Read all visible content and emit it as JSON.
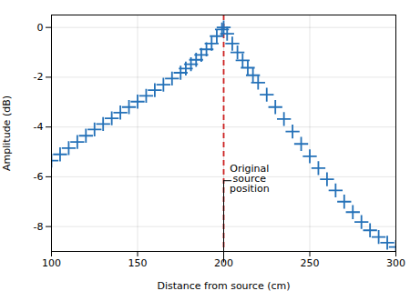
{
  "chart_data": {
    "type": "scatter",
    "xlabel": "Distance from source (cm)",
    "ylabel": "Amplitude (dB)",
    "x": [
      100,
      105,
      110,
      115,
      120,
      125,
      130,
      135,
      140,
      145,
      150,
      155,
      160,
      165,
      170,
      175,
      178,
      181,
      184,
      187,
      190,
      193,
      196,
      199,
      200,
      202,
      205,
      208,
      211,
      214,
      217,
      220,
      225,
      230,
      235,
      240,
      245,
      250,
      255,
      260,
      265,
      270,
      275,
      280,
      285,
      290,
      295,
      300
    ],
    "values": [
      -5.35,
      -5.1,
      -4.85,
      -4.6,
      -4.35,
      -4.1,
      -3.88,
      -3.65,
      -3.42,
      -3.2,
      -2.98,
      -2.75,
      -2.52,
      -2.3,
      -2.05,
      -1.82,
      -1.65,
      -1.48,
      -1.3,
      -1.1,
      -0.88,
      -0.65,
      -0.35,
      -0.08,
      0.0,
      -0.25,
      -0.65,
      -1.0,
      -1.32,
      -1.62,
      -1.92,
      -2.22,
      -2.7,
      -3.2,
      -3.68,
      -4.18,
      -4.68,
      -5.18,
      -5.65,
      -6.1,
      -6.55,
      -7.0,
      -7.42,
      -7.82,
      -8.15,
      -8.42,
      -8.65,
      -8.82
    ],
    "color": "#2471b8",
    "marker": "+",
    "xlim": [
      100,
      300
    ],
    "ylim": [
      -9,
      0.5
    ],
    "xticks": [
      100,
      150,
      200,
      250,
      300
    ],
    "yticks": [
      0,
      -2,
      -4,
      -6,
      -8
    ],
    "grid": true,
    "vlines": [
      {
        "x": 200,
        "color": "#cc2222",
        "line_style": "dashed"
      }
    ],
    "annotations": [
      {
        "text": "Original\nsource\nposition",
        "x": 215,
        "y": -5.5,
        "arrow_x": 200,
        "arrow_y": -8.8
      }
    ]
  }
}
